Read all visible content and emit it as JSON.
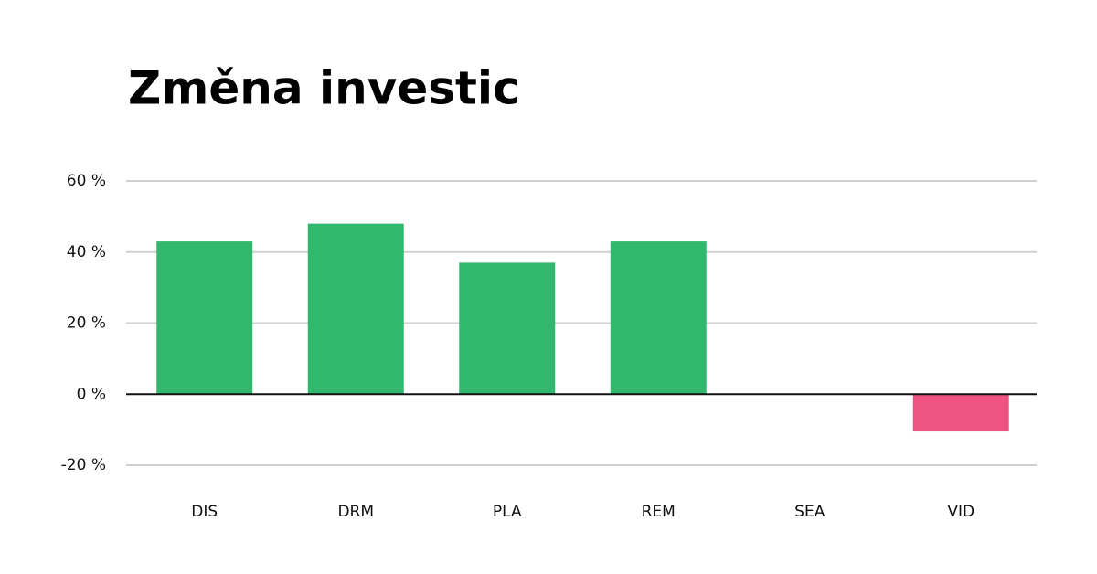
{
  "chart_data": {
    "type": "bar",
    "title": "Změna investic",
    "categories": [
      "DIS",
      "DRM",
      "PLA",
      "REM",
      "SEA",
      "VID"
    ],
    "values": [
      43,
      48,
      37,
      43,
      0,
      -10.5
    ],
    "positive_color": "#32b76f",
    "negative_color": "#ee5482",
    "ylim": [
      -20,
      60
    ],
    "yticks": [
      {
        "value": -20,
        "label": "-20 %"
      },
      {
        "value": 0,
        "label": "0 %"
      },
      {
        "value": 20,
        "label": "20 %"
      },
      {
        "value": 40,
        "label": "40 %"
      },
      {
        "value": 60,
        "label": "60 %"
      }
    ],
    "grid": true
  }
}
